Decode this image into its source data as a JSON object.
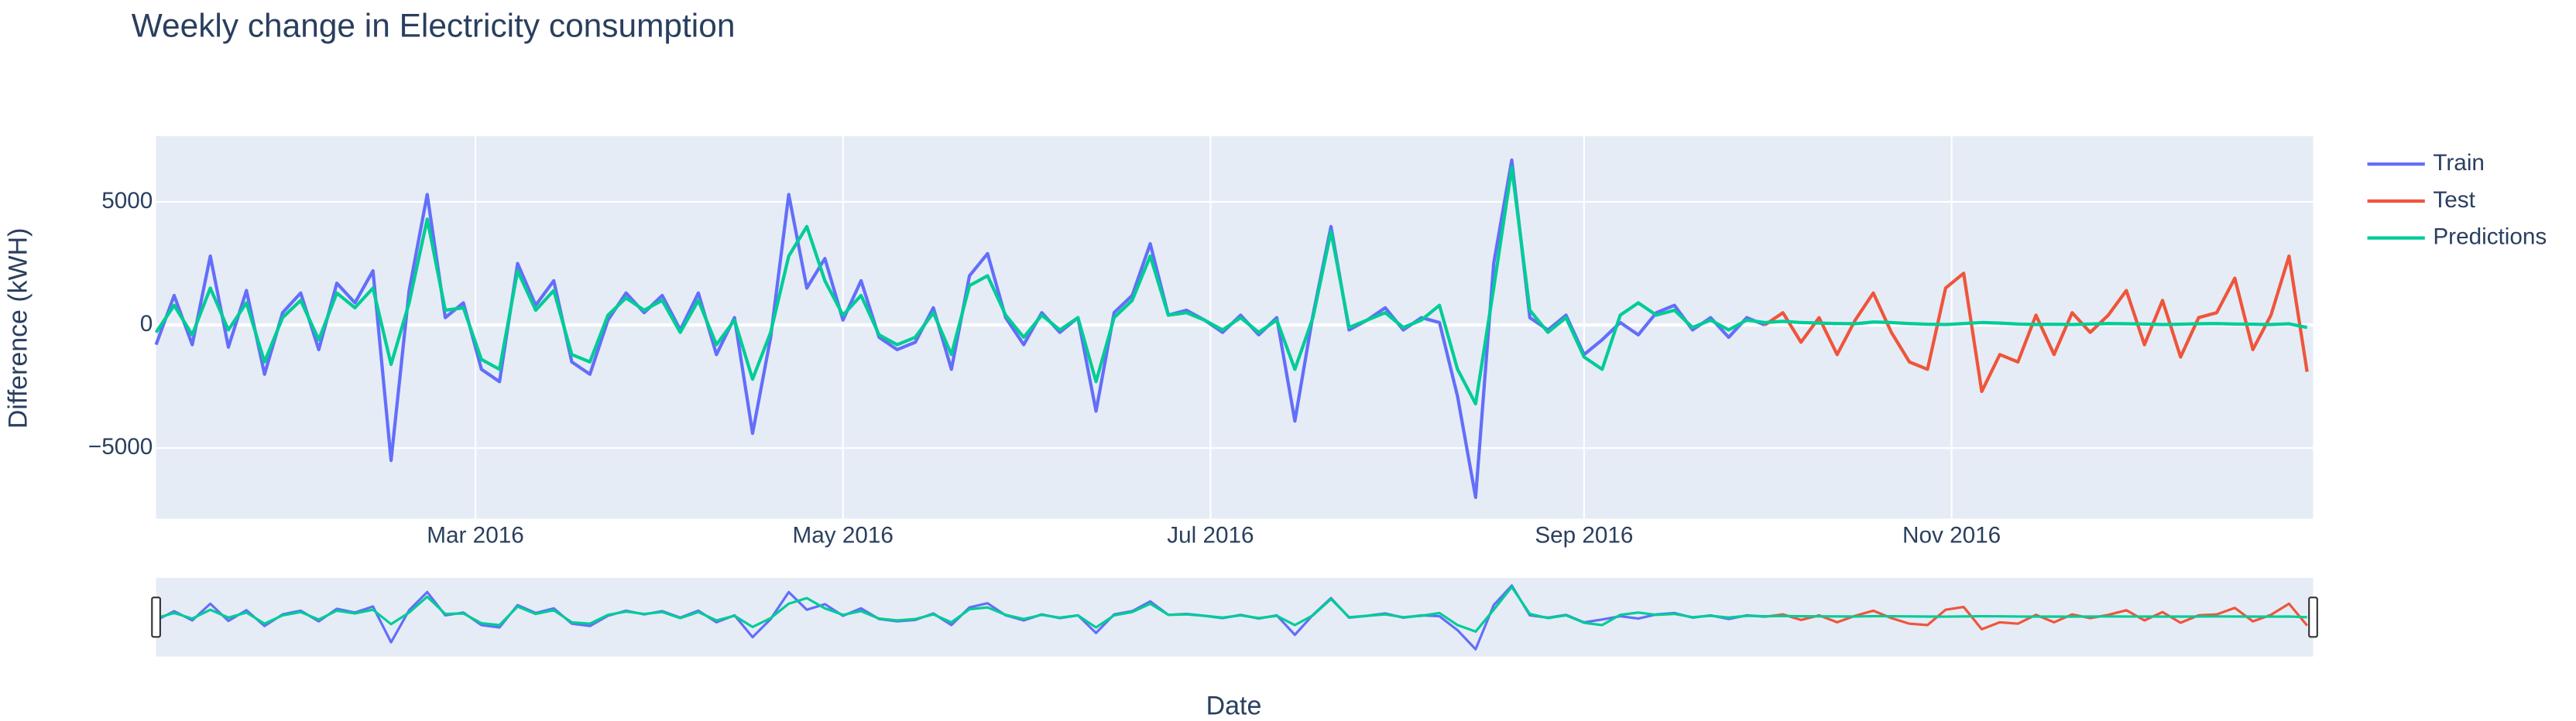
{
  "chart_data": {
    "type": "line",
    "title": "Weekly change in Electricity consumption",
    "xlabel": "Date",
    "ylabel": "Difference (kWH)",
    "x": [
      "2016-01-08",
      "2016-01-11",
      "2016-01-14",
      "2016-01-17",
      "2016-01-20",
      "2016-01-23",
      "2016-01-26",
      "2016-01-29",
      "2016-02-01",
      "2016-02-04",
      "2016-02-07",
      "2016-02-10",
      "2016-02-13",
      "2016-02-16",
      "2016-02-19",
      "2016-02-22",
      "2016-02-25",
      "2016-02-28",
      "2016-03-02",
      "2016-03-05",
      "2016-03-08",
      "2016-03-11",
      "2016-03-14",
      "2016-03-17",
      "2016-03-20",
      "2016-03-23",
      "2016-03-26",
      "2016-03-29",
      "2016-04-01",
      "2016-04-04",
      "2016-04-07",
      "2016-04-10",
      "2016-04-13",
      "2016-04-16",
      "2016-04-19",
      "2016-04-22",
      "2016-04-25",
      "2016-04-28",
      "2016-05-01",
      "2016-05-04",
      "2016-05-07",
      "2016-05-10",
      "2016-05-13",
      "2016-05-16",
      "2016-05-19",
      "2016-05-22",
      "2016-05-25",
      "2016-05-28",
      "2016-05-31",
      "2016-06-03",
      "2016-06-06",
      "2016-06-09",
      "2016-06-12",
      "2016-06-15",
      "2016-06-18",
      "2016-06-21",
      "2016-06-24",
      "2016-06-27",
      "2016-06-30",
      "2016-07-03",
      "2016-07-06",
      "2016-07-09",
      "2016-07-12",
      "2016-07-15",
      "2016-07-18",
      "2016-07-21",
      "2016-07-24",
      "2016-07-27",
      "2016-07-30",
      "2016-08-02",
      "2016-08-05",
      "2016-08-08",
      "2016-08-11",
      "2016-08-14",
      "2016-08-17",
      "2016-08-20",
      "2016-08-23",
      "2016-08-26",
      "2016-08-29",
      "2016-09-01",
      "2016-09-04",
      "2016-09-07",
      "2016-09-10",
      "2016-09-13",
      "2016-09-16",
      "2016-09-19",
      "2016-09-22",
      "2016-09-25",
      "2016-09-28",
      "2016-10-01",
      "2016-10-04",
      "2016-10-07",
      "2016-10-10",
      "2016-10-13",
      "2016-10-16",
      "2016-10-19",
      "2016-10-22",
      "2016-10-25",
      "2016-10-28",
      "2016-10-31",
      "2016-11-03",
      "2016-11-06",
      "2016-11-09",
      "2016-11-12",
      "2016-11-15",
      "2016-11-18",
      "2016-11-21",
      "2016-11-24",
      "2016-11-27",
      "2016-11-30",
      "2016-12-03",
      "2016-12-06",
      "2016-12-09",
      "2016-12-12",
      "2016-12-15",
      "2016-12-18",
      "2016-12-21",
      "2016-12-24",
      "2016-12-27",
      "2016-12-30"
    ],
    "series": [
      {
        "name": "Train",
        "color": "#636efa",
        "values": [
          -800,
          1200,
          -800,
          2800,
          -900,
          1400,
          -2000,
          500,
          1300,
          -1000,
          1700,
          900,
          2200,
          -5500,
          1400,
          5300,
          300,
          900,
          -1800,
          -2300,
          2500,
          800,
          1800,
          -1500,
          -2000,
          200,
          1300,
          500,
          1200,
          -200,
          1300,
          -1200,
          300,
          -4400,
          -500,
          5300,
          1500,
          2700,
          200,
          1800,
          -500,
          -1000,
          -700,
          700,
          -1800,
          2000,
          2900,
          300,
          -800,
          500,
          -300,
          300,
          -3500,
          500,
          1200,
          3300,
          400,
          600,
          200,
          -300,
          400,
          -400,
          300,
          -3900,
          400,
          4000,
          -200,
          200,
          700,
          -200,
          300,
          100,
          -2900,
          -7000,
          2500,
          6700,
          300,
          -200,
          400,
          -1200,
          -600,
          100,
          -400,
          500,
          800,
          -200,
          300,
          -500,
          300,
          0,
          null,
          null,
          null,
          null,
          null,
          null,
          null,
          null,
          null,
          null,
          null,
          null,
          null,
          null,
          null,
          null,
          null,
          null,
          null,
          null,
          null,
          null,
          null,
          null,
          null,
          null,
          null,
          null,
          null,
          null
        ]
      },
      {
        "name": "Test",
        "color": "#ef553b",
        "values": [
          null,
          null,
          null,
          null,
          null,
          null,
          null,
          null,
          null,
          null,
          null,
          null,
          null,
          null,
          null,
          null,
          null,
          null,
          null,
          null,
          null,
          null,
          null,
          null,
          null,
          null,
          null,
          null,
          null,
          null,
          null,
          null,
          null,
          null,
          null,
          null,
          null,
          null,
          null,
          null,
          null,
          null,
          null,
          null,
          null,
          null,
          null,
          null,
          null,
          null,
          null,
          null,
          null,
          null,
          null,
          null,
          null,
          null,
          null,
          null,
          null,
          null,
          null,
          null,
          null,
          null,
          null,
          null,
          null,
          null,
          null,
          null,
          null,
          null,
          null,
          null,
          null,
          null,
          null,
          null,
          null,
          null,
          null,
          null,
          null,
          null,
          null,
          null,
          null,
          0,
          500,
          -700,
          300,
          -1200,
          200,
          1300,
          -300,
          -1500,
          -1800,
          1500,
          2100,
          -2700,
          -1200,
          -1500,
          400,
          -1200,
          500,
          -300,
          400,
          1400,
          -800,
          1000,
          -1300,
          300,
          500,
          1900,
          -1000,
          400,
          2800,
          -1900
        ]
      },
      {
        "name": "Predictions",
        "color": "#00cc96",
        "values": [
          -300,
          800,
          -400,
          1500,
          -200,
          900,
          -1500,
          300,
          1000,
          -600,
          1300,
          700,
          1500,
          -1600,
          900,
          4300,
          600,
          700,
          -1400,
          -1800,
          2200,
          600,
          1400,
          -1200,
          -1500,
          400,
          1100,
          600,
          1000,
          -300,
          1000,
          -800,
          200,
          -2200,
          -300,
          2800,
          4000,
          1800,
          400,
          1200,
          -400,
          -800,
          -500,
          500,
          -1200,
          1600,
          2000,
          400,
          -500,
          400,
          -200,
          300,
          -2300,
          300,
          1000,
          2800,
          400,
          500,
          200,
          -200,
          300,
          -300,
          200,
          -1800,
          300,
          3800,
          -100,
          200,
          500,
          -100,
          200,
          800,
          -1800,
          -3200,
          1500,
          6400,
          600,
          -300,
          300,
          -1300,
          -1800,
          400,
          900,
          400,
          600,
          -100,
          200,
          -200,
          200,
          100,
          150,
          100,
          80,
          60,
          50,
          120,
          100,
          60,
          30,
          20,
          60,
          100,
          80,
          40,
          20,
          30,
          20,
          40,
          60,
          50,
          40,
          20,
          30,
          50,
          60,
          40,
          30,
          20,
          50,
          -100
        ]
      }
    ],
    "xlim": [
      "2016-01-08",
      "2016-12-31"
    ],
    "xticks": [
      {
        "value": "2016-03-01",
        "label": "Mar 2016"
      },
      {
        "value": "2016-05-01",
        "label": "May 2016"
      },
      {
        "value": "2016-07-01",
        "label": "Jul 2016"
      },
      {
        "value": "2016-09-01",
        "label": "Sep 2016"
      },
      {
        "value": "2016-11-01",
        "label": "Nov 2016"
      }
    ],
    "ylim": [
      -7867,
      7667
    ],
    "yticks": [
      {
        "value": -5000,
        "label": "−5000"
      },
      0,
      5000
    ],
    "grid": true,
    "legend": "right",
    "rangeslider": true
  }
}
